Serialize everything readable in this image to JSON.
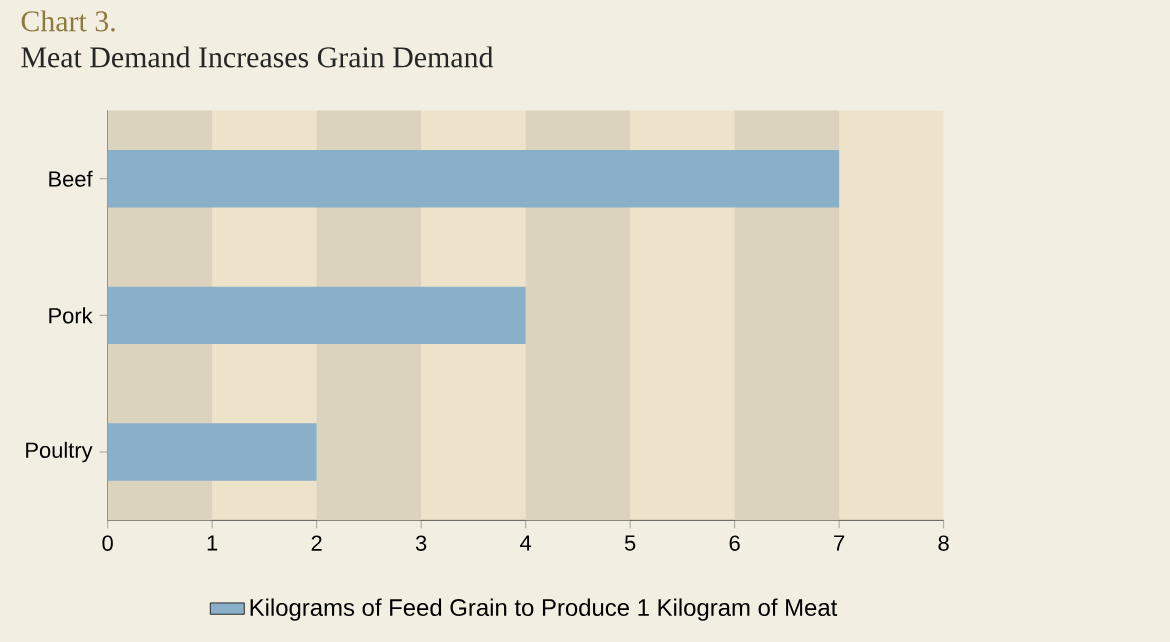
{
  "chart_data": {
    "type": "bar",
    "orientation": "horizontal",
    "title": "Chart 3.",
    "subtitle": "Meat Demand Increases Grain Demand",
    "categories": [
      "Beef",
      "Pork",
      "Poultry"
    ],
    "series": [
      {
        "name": "Kilograms of Feed Grain to Produce 1 Kilogram of Meat",
        "color": "#8aafc8",
        "values": [
          7,
          4,
          2
        ]
      }
    ],
    "xlim": [
      0,
      8
    ],
    "xticks": [
      0,
      1,
      2,
      3,
      4,
      5,
      6,
      7,
      8
    ],
    "bands": [
      {
        "axis": "x",
        "from": 0,
        "to": 1,
        "color": "#dcd3be"
      },
      {
        "axis": "x",
        "from": 2,
        "to": 3,
        "color": "#dcd3be"
      },
      {
        "axis": "x",
        "from": 4,
        "to": 5,
        "color": "#dcd3be"
      },
      {
        "axis": "x",
        "from": 6,
        "to": 7,
        "color": "#dcd3be"
      }
    ],
    "legend": "bottom"
  }
}
